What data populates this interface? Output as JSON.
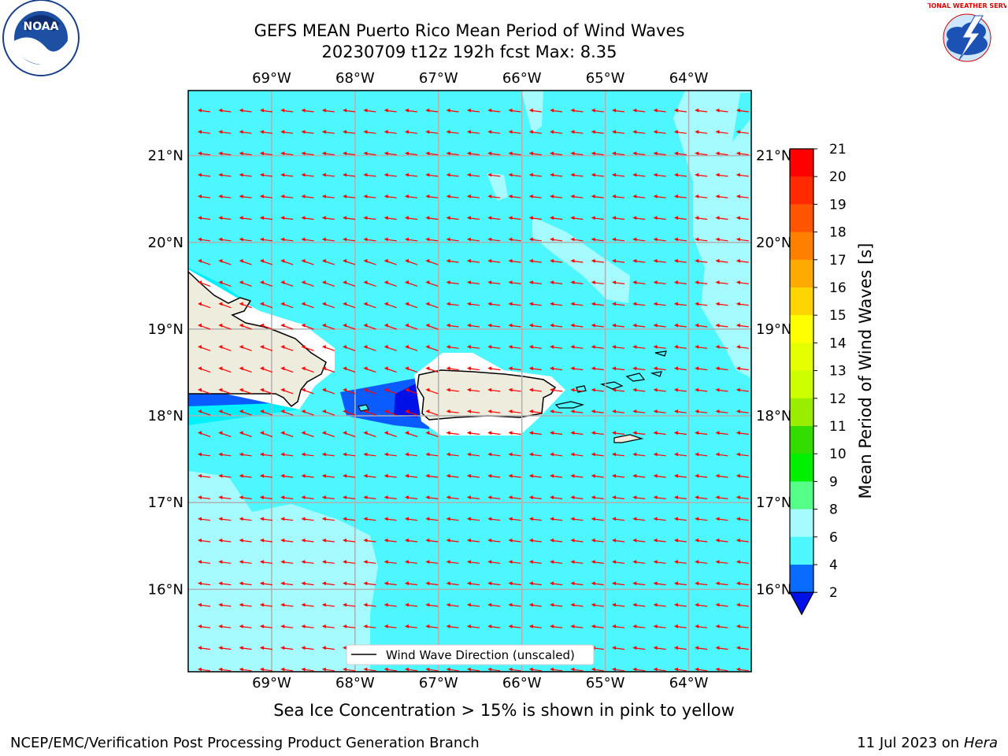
{
  "title": {
    "line1": "GEFS MEAN Puerto Rico Mean Period of Wind Waves",
    "line2": "20230709 t12z 192h fcst   Max: 8.35"
  },
  "map": {
    "lon_labels": [
      "69°W",
      "68°W",
      "67°W",
      "66°W",
      "65°W",
      "64°W"
    ],
    "lat_labels": [
      "21°N",
      "20°N",
      "19°N",
      "18°N",
      "17°N",
      "16°N"
    ],
    "lon_range": [
      -70.0,
      -63.25
    ],
    "lat_range": [
      15.05,
      21.75
    ],
    "legend_label": "Wind Wave Direction (unscaled)",
    "arrow_direction": "westward (east winds)",
    "colors": {
      "land": "#eeecdc",
      "low_period": "#0a5cff",
      "very_low_period": "#0010e6",
      "ocean_main": "#4df7ff",
      "ocean_light": "#a5fbff",
      "arrows": "#ff0000"
    }
  },
  "colorbar": {
    "label": "Mean Period of Wind Waves [s]",
    "ticks": [
      "21",
      "20",
      "19",
      "18",
      "17",
      "16",
      "15",
      "14",
      "13",
      "12",
      "11",
      "10",
      "9",
      "8",
      "6",
      "4",
      "2"
    ],
    "colors": [
      "#ff0000",
      "#ff2a00",
      "#ff5500",
      "#ff8000",
      "#ffaa00",
      "#ffd400",
      "#ffff00",
      "#e6ff00",
      "#ccff00",
      "#99ee00",
      "#33dd00",
      "#00f000",
      "#55ff88",
      "#a5fbff",
      "#4df7ff",
      "#00f0ff",
      "#0a6cff"
    ],
    "under_color": "#0010e6"
  },
  "ice_note": "Sea Ice Concentration > 15% is shown in pink to yellow",
  "footer": {
    "left": "NCEP/EMC/Verification Post Processing Product Generation Branch",
    "right_prefix": "11 Jul 2023 on ",
    "right_host": "Hera"
  },
  "logos": {
    "noaa_text": "NOAA",
    "nws_text": "NATIONAL WEATHER SERVICE"
  }
}
